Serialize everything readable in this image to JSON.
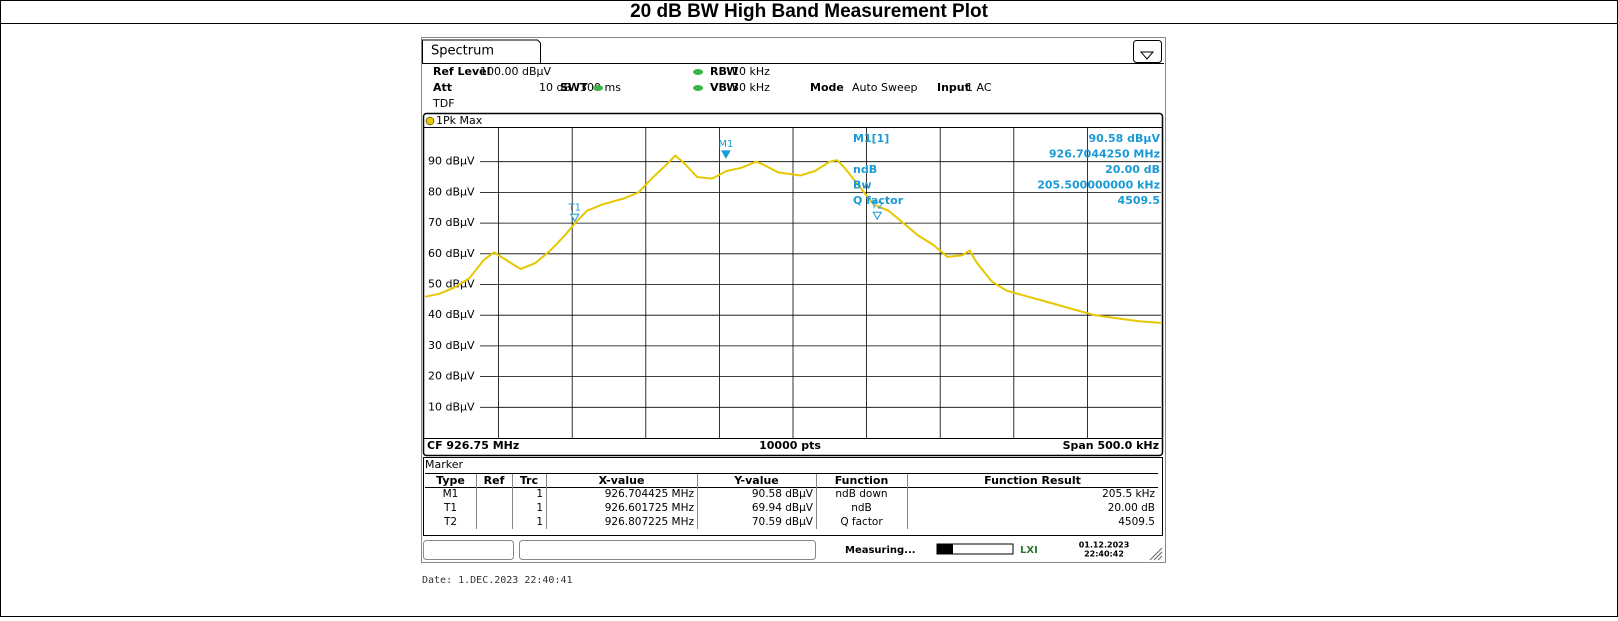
{
  "header": {
    "title": "20 dB BW High Band Measurement Plot"
  },
  "tab": "Spectrum",
  "settings": [
    {
      "label": "Ref Level",
      "value": "100.00 dBµV"
    },
    {
      "label": "Att",
      "value": "10 dB"
    },
    {
      "label": "SWT",
      "value": "300 ms"
    },
    {
      "label": "RBW",
      "value": "10 kHz"
    },
    {
      "label": "VBW",
      "value": "30 kHz"
    },
    {
      "label": "Mode",
      "value": "Auto Sweep"
    },
    {
      "label": "Input",
      "value": "1 AC"
    }
  ],
  "tdf": "TDF",
  "trace_label": "1Pk Max",
  "chart_data": {
    "type": "line",
    "color": "#e6c800",
    "x": [
      926.5,
      926.51,
      926.52,
      926.53,
      926.54,
      926.547,
      926.555,
      926.565,
      926.575,
      926.585,
      926.595,
      926.602,
      926.61,
      926.62,
      926.635,
      926.645,
      926.655,
      926.665,
      926.67,
      926.675,
      926.685,
      926.695,
      926.705,
      926.715,
      926.725,
      926.73,
      926.74,
      926.755,
      926.765,
      926.775,
      926.78,
      926.785,
      926.795,
      926.805,
      926.815,
      926.825,
      926.835,
      926.845,
      926.855,
      926.865,
      926.87,
      926.875,
      926.885,
      926.895,
      926.91,
      926.925,
      926.94,
      926.955,
      926.97,
      926.985,
      927.0
    ],
    "values": [
      46,
      47,
      49,
      52,
      58,
      60.5,
      58,
      55,
      57,
      61,
      66,
      70,
      74,
      76,
      78,
      80,
      85,
      89.5,
      92,
      90,
      85,
      84.5,
      87,
      88,
      90,
      89,
      86.5,
      85.5,
      87,
      90,
      90.5,
      88,
      82,
      76,
      74,
      70,
      66,
      63,
      59,
      59.5,
      61,
      57,
      51,
      48,
      46,
      44,
      42,
      40,
      39,
      38,
      37.5
    ],
    "xlim": [
      926.5,
      927.0
    ],
    "ylim": [
      0,
      100
    ],
    "yticks": [
      {
        "value": 10,
        "label": "10 dBµV"
      },
      {
        "value": 20,
        "label": "20 dBµV"
      },
      {
        "value": 30,
        "label": "30 dBµV"
      },
      {
        "value": 40,
        "label": "40 dBµV"
      },
      {
        "value": 50,
        "label": "50 dBµV"
      },
      {
        "value": 60,
        "label": "60 dBµV"
      },
      {
        "value": 70,
        "label": "70 dBµV"
      },
      {
        "value": 80,
        "label": "80 dBµV"
      },
      {
        "value": 90,
        "label": "90 dBµV"
      }
    ],
    "grid": true,
    "markers": [
      {
        "label": "M1",
        "x": 926.704425,
        "y": 90.58,
        "filled": true
      },
      {
        "label": "T1",
        "x": 926.601725,
        "y": 69.94,
        "filled": false
      },
      {
        "label": "T2",
        "x": 926.807225,
        "y": 70.59,
        "filled": false
      }
    ]
  },
  "marker_info": {
    "title": "M1[1]",
    "rows": [
      {
        "label": null,
        "value": "90.58 dBµV"
      },
      {
        "label": null,
        "value": "926.7044250 MHz"
      },
      {
        "label": "ndB",
        "value": "20.00 dB"
      },
      {
        "label": "Bw",
        "value": "205.500000000 kHz"
      },
      {
        "label": "Q factor",
        "value": "4509.5"
      }
    ]
  },
  "footer": {
    "cf": "CF 926.75 MHz",
    "points": "10000 pts",
    "span": "Span 500.0 kHz"
  },
  "marker_table": {
    "title": "Marker",
    "columns": [
      "Type",
      "Ref",
      "Trc",
      "X-value",
      "Y-value",
      "Function",
      "Function Result"
    ],
    "rows": [
      [
        "M1",
        null,
        "1",
        "926.704425 MHz",
        "90.58 dBµV",
        "ndB down",
        "205.5 kHz"
      ],
      [
        "T1",
        null,
        "1",
        "926.601725 MHz",
        "69.94 dBµV",
        "ndB",
        "20.00 dB"
      ],
      [
        "T2",
        null,
        "1",
        "926.807225 MHz",
        "70.59 dBµV",
        "Q factor",
        "4509.5"
      ]
    ]
  },
  "status": {
    "text": "Measuring...",
    "date": "01.12.2023",
    "time": "22:40:42"
  },
  "date_line": "Date: 1.DEC.2023  22:40:41"
}
